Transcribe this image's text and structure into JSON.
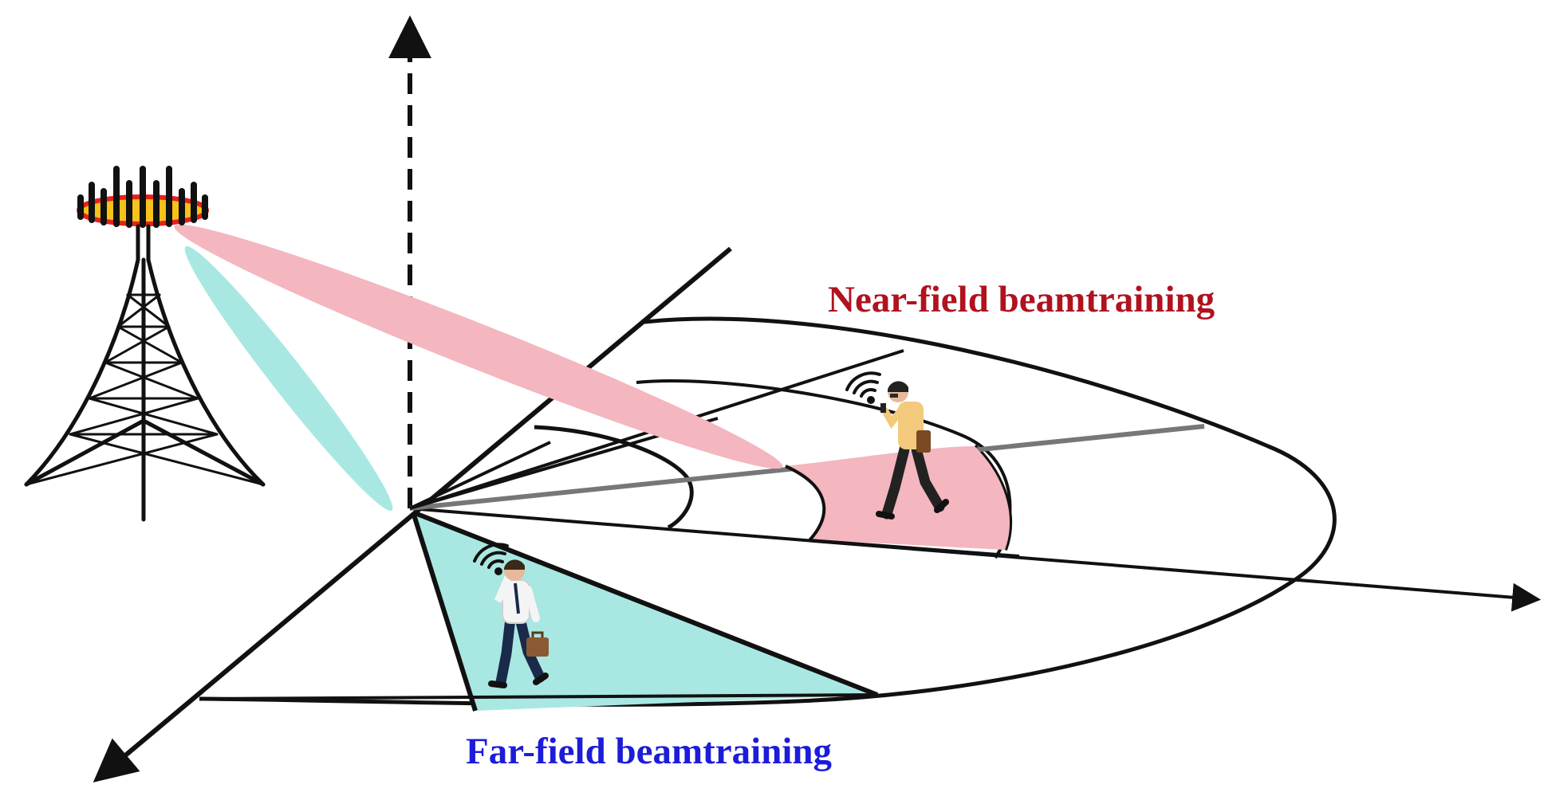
{
  "labels": {
    "near_field": "Near-field beamtraining",
    "far_field": "Far-field beamtraining"
  },
  "colors": {
    "near_field": "#b0121f",
    "far_field": "#1c1cd9",
    "near_beam": "#f4b6bf",
    "far_beam": "#a9e8e2",
    "antenna_disc": "#f6c21b",
    "antenna_rim": "#e8201d",
    "line": "#111111"
  },
  "icons": {
    "base_station": "base-station-tower-icon",
    "near_user": "walking-user-with-phone-icon",
    "far_user": "walking-businessman-on-call-icon",
    "signal": "wifi-signal-icon"
  }
}
